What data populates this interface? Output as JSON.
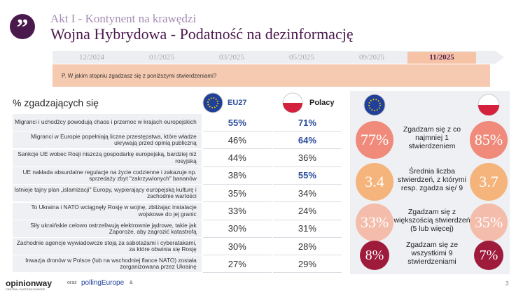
{
  "header": {
    "subtitle": "Akt I - Kontynent na krawędzi",
    "title": "Wojna Hybrydowa - Podatność na dezinformację"
  },
  "timeline": {
    "tabs": [
      "12/2024",
      "01/2025",
      "03/2025",
      "05/2025",
      "09/2025",
      "11/2025"
    ],
    "active": 5
  },
  "question": "P. W jakim stopniu zgadzasz się z poniższymi stwierdzeniami?",
  "table": {
    "heading": "% zgadzających się",
    "columns": {
      "eu27": "EU27",
      "polacy": "Polacy"
    },
    "highlight_color": "#2b4d9b",
    "rows": [
      {
        "statement": "Migranci i uchodźcy powodują chaos i przemoc w krajach europejskich",
        "eu27": "55%",
        "polacy": "71%",
        "highlight": [
          "eu27",
          "polacy"
        ]
      },
      {
        "statement": "Migranci w Europie popełniają liczne przestępstwa, które władze ukrywają przed opinią publiczną",
        "eu27": "46%",
        "polacy": "64%",
        "highlight": [
          "polacy"
        ]
      },
      {
        "statement": "Sankcje UE wobec Rosji niszczą gospodarkę europejską, bardziej niż rosyjską",
        "eu27": "44%",
        "polacy": "36%"
      },
      {
        "statement": "UE nakłada absurdalne regulacje na życie codzienne i zakazuje np. sprzedaży zbyt \"zakrzywionych\" bananów",
        "eu27": "38%",
        "polacy": "55%",
        "highlight": [
          "polacy"
        ]
      },
      {
        "statement": "Istnieje tajny plan „islamizacji\" Europy, wypierający europejską kulturę i zachodnie wartości",
        "eu27": "35%",
        "polacy": "34%"
      },
      {
        "statement": "To Ukraina i NATO wciągnęły Rosję w wojnę, zbliżając instalacje wojskowe do jej granic",
        "eu27": "33%",
        "polacy": "24%"
      },
      {
        "statement": "Siły ukraińskie celowo ostrzeliwują elektrownie jądrowe, takie jak Zaporoże, aby zagrozić katastrofą",
        "eu27": "30%",
        "polacy": "31%"
      },
      {
        "statement": "Zachodnie agencje wywiadowcze stoją za sabotażami i cyberatakami, za które obwinia się Rosję",
        "eu27": "30%",
        "polacy": "28%"
      },
      {
        "statement": "Inwazja dronów w Polsce (lub na wschodniej flance NATO) została zorganizowana przez Ukrainę",
        "eu27": "27%",
        "polacy": "29%"
      }
    ]
  },
  "summary": {
    "rows": [
      {
        "eu27": "77%",
        "label": "Zgadzam się z co najmniej 1 stwierdzeniem",
        "polacy": "85%",
        "color": "#f08a7b"
      },
      {
        "eu27": "3.4",
        "label": "Średnia liczba stwierdzeń, z którymi resp. zgadza się/ 9",
        "polacy": "3.7",
        "color": "#f5b47c"
      },
      {
        "eu27": "33%",
        "label": "Zgadzam się z większością stwierdzeń (5 lub więcej)",
        "polacy": "35%",
        "color": "#f3bcab"
      },
      {
        "eu27": "8%",
        "label": "Zgadzam się ze wszystkimi 9 stwierdzeniami",
        "polacy": "7%",
        "color": "#9e1b3c"
      }
    ]
  },
  "footer": {
    "brand": "opinionway",
    "brand_sub": "CENTRAL EASTERN EUROPE",
    "and1": "oraz",
    "partner": "pollingEurope",
    "and2": "&",
    "page": "3"
  }
}
